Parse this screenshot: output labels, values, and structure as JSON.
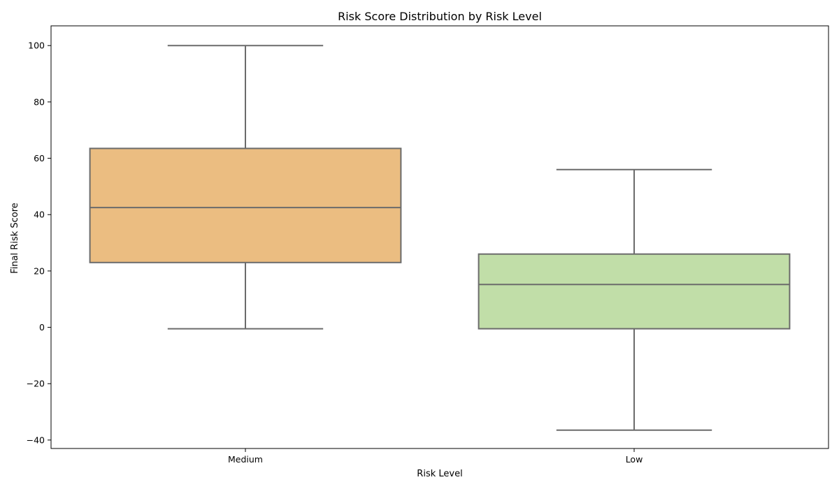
{
  "chart_data": {
    "type": "box",
    "title": "Risk Score Distribution by Risk Level",
    "xlabel": "Risk Level",
    "ylabel": "Final Risk Score",
    "categories": [
      "Medium",
      "Low"
    ],
    "ylim": [
      -43,
      107
    ],
    "yticks": [
      -40,
      -20,
      0,
      20,
      40,
      60,
      80,
      100
    ],
    "ytick_labels": [
      "−40",
      "−20",
      "0",
      "20",
      "40",
      "60",
      "80",
      "100"
    ],
    "grid": false,
    "legend": "none",
    "series": [
      {
        "category": "Medium",
        "whisker_low": -0.5,
        "q1": 23,
        "median": 42.5,
        "q3": 63.5,
        "whisker_high": 100,
        "color": "#ebbd81"
      },
      {
        "category": "Low",
        "whisker_low": -36.5,
        "q1": -0.5,
        "median": 15.2,
        "q3": 26,
        "whisker_high": 56,
        "color": "#c1dea8"
      }
    ],
    "line_color": "#6b6b6b"
  }
}
